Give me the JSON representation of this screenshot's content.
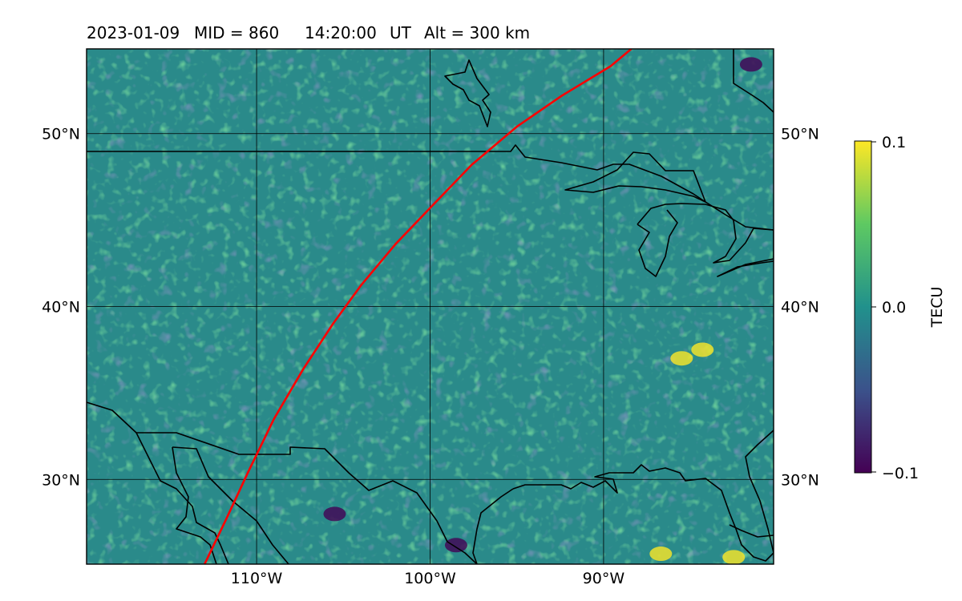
{
  "title": {
    "date": "2023-01-09",
    "mid": "MID = 860",
    "time": "14:20:00",
    "ut": "UT",
    "alt": "Alt = 300 km"
  },
  "map": {
    "lon_range": [
      -119.8,
      -80.2
    ],
    "lat_range": [
      25.1,
      54.9
    ],
    "grid_lats": [
      30,
      40,
      50
    ],
    "grid_lons": [
      -110,
      -100,
      -90
    ],
    "lat_labels": [
      "30°N",
      "40°N",
      "50°N"
    ],
    "lon_labels": [
      "110°W",
      "100°W",
      "90°W"
    ],
    "field": "TEC perturbation",
    "background_color": "#2a8a8a",
    "coastline_color": "#000000",
    "track_color": "#ff0000",
    "highlights": [
      {
        "lon": -84.3,
        "lat": 37.5,
        "level": "high"
      },
      {
        "lon": -85.5,
        "lat": 37.0,
        "level": "high"
      },
      {
        "lon": -82.5,
        "lat": 25.5,
        "level": "high"
      },
      {
        "lon": -86.7,
        "lat": 25.7,
        "level": "high"
      },
      {
        "lon": -105.5,
        "lat": 28.0,
        "level": "low"
      },
      {
        "lon": -98.5,
        "lat": 26.2,
        "level": "low"
      },
      {
        "lon": -81.5,
        "lat": 54.0,
        "level": "low"
      }
    ]
  },
  "track": [
    [
      -113.0,
      25.1
    ],
    [
      -111.8,
      27.6
    ],
    [
      -110.5,
      30.4
    ],
    [
      -109.0,
      33.5
    ],
    [
      -107.3,
      36.4
    ],
    [
      -105.6,
      39.0
    ],
    [
      -104.0,
      41.2
    ],
    [
      -102.0,
      43.6
    ],
    [
      -100.0,
      45.7
    ],
    [
      -97.6,
      48.2
    ],
    [
      -95.0,
      50.4
    ],
    [
      -92.4,
      52.2
    ],
    [
      -89.6,
      53.9
    ],
    [
      -88.4,
      54.9
    ]
  ],
  "colorbar": {
    "label": "TECU",
    "ticks": [
      "0.1",
      "0.0",
      "−0.1"
    ],
    "vmin": -0.1,
    "vmax": 0.1,
    "colors": [
      "#440154",
      "#3b528b",
      "#21918c",
      "#5ec962",
      "#fde725"
    ]
  }
}
